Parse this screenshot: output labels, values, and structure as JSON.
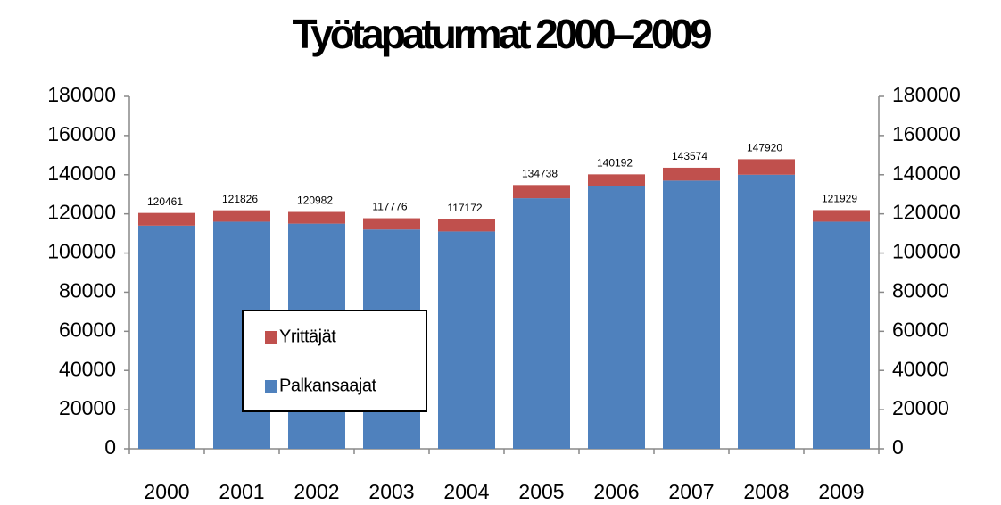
{
  "chart_data": {
    "type": "stacked-bar",
    "title": "Työtapaturmat 2000–2009",
    "categories": [
      "2000",
      "2001",
      "2002",
      "2003",
      "2004",
      "2005",
      "2006",
      "2007",
      "2008",
      "2009"
    ],
    "series": [
      {
        "name": "Palkansaajat",
        "color": "#4f81bd",
        "values": [
          114000,
          116000,
          115000,
          112000,
          111000,
          128000,
          134000,
          137000,
          140000,
          116000
        ]
      },
      {
        "name": "Yrittäjät",
        "color": "#c0504d",
        "values": [
          6461,
          5826,
          5982,
          5776,
          6172,
          6738,
          6192,
          6574,
          7920,
          5929
        ]
      }
    ],
    "totals": [
      120461,
      121826,
      120982,
      117776,
      117172,
      134738,
      140192,
      143574,
      147920,
      121929
    ],
    "ylim": [
      0,
      180000
    ],
    "yticks": [
      0,
      20000,
      40000,
      60000,
      80000,
      100000,
      120000,
      140000,
      160000,
      180000
    ],
    "y2lim": [
      0,
      180000
    ],
    "y2ticks": [
      0,
      20000,
      40000,
      60000,
      80000,
      100000,
      120000,
      140000,
      160000,
      180000
    ],
    "legend": "inside-left"
  }
}
